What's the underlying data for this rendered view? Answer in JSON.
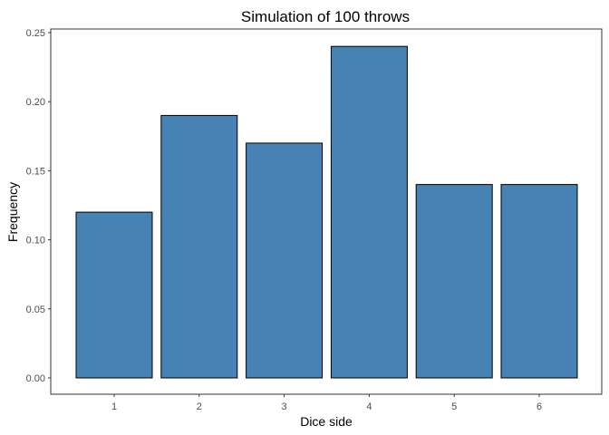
{
  "chart_data": {
    "type": "bar",
    "title": "Simulation of 100 throws",
    "xlabel": "Dice side",
    "ylabel": "Frequency",
    "categories": [
      "1",
      "2",
      "3",
      "4",
      "5",
      "6"
    ],
    "values": [
      0.12,
      0.19,
      0.17,
      0.24,
      0.14,
      0.14
    ],
    "ylim": [
      0,
      0.25
    ],
    "y_ticks": [
      "0.00",
      "0.05",
      "0.10",
      "0.15",
      "0.20",
      "0.25"
    ],
    "grid": false,
    "legend": "none",
    "colors": {
      "bar_fill": "#4682B4",
      "bar_stroke": "#000000",
      "axis": "#333333",
      "tick_text": "#4d4d4d"
    }
  }
}
